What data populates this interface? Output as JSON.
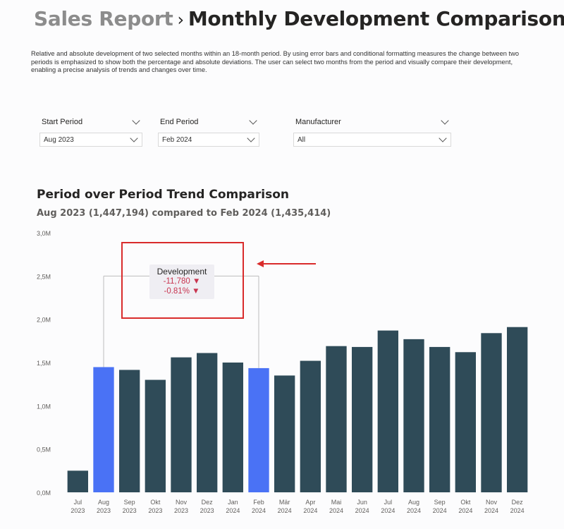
{
  "header": {
    "parent": "Sales Report",
    "separator": "›",
    "current": "Monthly Development Comparison"
  },
  "description": "Relative and absolute development of two selected months within an 18-month period. By using error bars and conditional formatting measures the change between two periods is emphasized to show both the percentage and absolute deviations. The user can select two months from the period and visually compare their development, enabling a precise analysis of trends and changes over time.",
  "filters": {
    "start": {
      "label": "Start Period",
      "value": "Aug 2023"
    },
    "end": {
      "label": "End Period",
      "value": "Feb 2024"
    },
    "manufacturer": {
      "label": "Manufacturer",
      "value": "All"
    }
  },
  "chart_title": "Period over Period Trend Comparison",
  "chart_subtitle": "Aug 2023 (1,447,194) compared to Feb 2024 (1,435,414)",
  "tooltip": {
    "label": "Development",
    "abs": "-11,780",
    "pct": "-0.81%",
    "arrow": "▼"
  },
  "colors": {
    "bar": "#2f4b58",
    "highlight": "#4a72f5",
    "annotation": "#d92b2b",
    "negative": "#c8344f"
  },
  "chart_data": {
    "type": "bar",
    "ylim": [
      0,
      3000000
    ],
    "yticks": [
      0,
      500000,
      1000000,
      1500000,
      2000000,
      2500000,
      3000000
    ],
    "ytick_labels": [
      "0,0M",
      "0,5M",
      "1,0M",
      "1,5M",
      "2,0M",
      "2,5M",
      "3,0M"
    ],
    "categories": [
      [
        "Jul",
        "2023"
      ],
      [
        "Aug",
        "2023"
      ],
      [
        "Sep",
        "2023"
      ],
      [
        "Okt",
        "2023"
      ],
      [
        "Nov",
        "2023"
      ],
      [
        "Dez",
        "2023"
      ],
      [
        "Jan",
        "2024"
      ],
      [
        "Feb",
        "2024"
      ],
      [
        "Mär",
        "2024"
      ],
      [
        "Apr",
        "2024"
      ],
      [
        "Mai",
        "2024"
      ],
      [
        "Jun",
        "2024"
      ],
      [
        "Jul",
        "2024"
      ],
      [
        "Aug",
        "2024"
      ],
      [
        "Sep",
        "2024"
      ],
      [
        "Okt",
        "2024"
      ],
      [
        "Nov",
        "2024"
      ],
      [
        "Dez",
        "2024"
      ]
    ],
    "values": [
      250000,
      1447194,
      1415000,
      1300000,
      1560000,
      1610000,
      1500000,
      1435414,
      1350000,
      1520000,
      1690000,
      1680000,
      1870000,
      1770000,
      1680000,
      1620000,
      1840000,
      1910000
    ],
    "highlighted": [
      1,
      7
    ],
    "error_bar_level": 2500000,
    "error_bar_from": 1,
    "error_bar_to": 7
  }
}
